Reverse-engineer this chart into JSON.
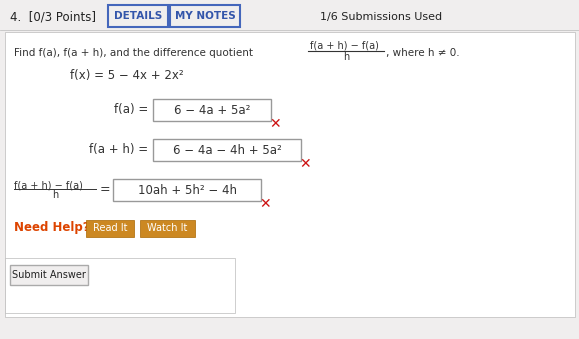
{
  "bg_color": "#c8c8c8",
  "page_bg": "#f0eeee",
  "content_bg": "#ffffff",
  "header_bg": "#f0eeee",
  "title_text": "4.  [0/3 Points]",
  "details_text": "DETAILS",
  "mynotes_text": "MY NOTES",
  "submissions_text": "1/6 Submissions Used",
  "instructions": "Find f(a), f(a + h), and the difference quotient",
  "fraction_num": "f(a + h) − f(a)",
  "fraction_den": "h",
  "where_text": ", where h ≠ 0.",
  "fx_line": "f(x) = 5 − 4x + 2x²",
  "fa_label": "f(a) = ",
  "fa_content": "6 − 4a + 5a²",
  "fah_label": "f(a + h) = ",
  "fah_content": "6 − 4a − 4h + 5a²",
  "dq_label_num": "f(a + h) − f(a)",
  "dq_label_den": "h",
  "dq_content": "10ah + 5h² − 4h",
  "need_help_text": "Need Help?",
  "read_it_text": "Read It",
  "watch_it_text": "Watch It",
  "submit_text": "Submit Answer",
  "details_btn_border": "#4466bb",
  "details_btn_fill": "#f0eeee",
  "details_text_color": "#3355aa",
  "mynotes_btn_border": "#4466bb",
  "mynotes_btn_fill": "#f0eeee",
  "mynotes_text_color": "#3355aa",
  "read_btn_color": "#cc8822",
  "watch_btn_color": "#cc8822",
  "submit_btn_border": "#aaaaaa",
  "submit_btn_fill": "#f0eeee",
  "need_help_color": "#dd4400",
  "cross_color": "#cc1111",
  "box_border_color": "#999999",
  "text_color": "#333333",
  "title_color": "#222222",
  "btn_text_color": "#ffffff",
  "read_btn_text": "#ffffff",
  "watch_btn_text": "#ffffff"
}
